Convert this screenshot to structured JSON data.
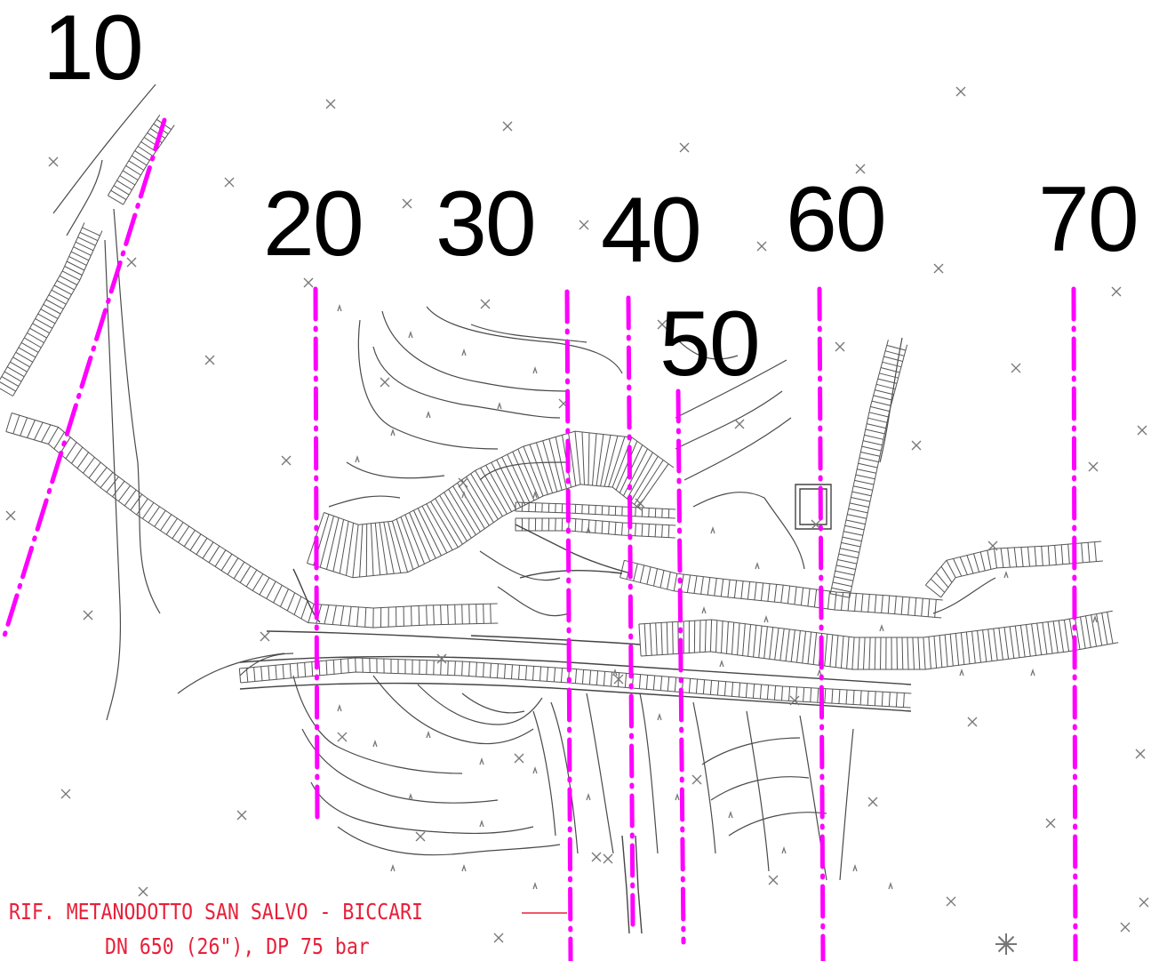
{
  "section_labels": {
    "s10": "10",
    "s20": "20",
    "s30": "30",
    "s40": "40",
    "s50": "50",
    "s60": "60",
    "s70": "70"
  },
  "reference_note": {
    "line1": "RIF. METANODOTTO SAN SALVO - BICCARI",
    "line2": "DN 650 (26\"), DP 75 bar"
  },
  "colors": {
    "section_line": "#ff00ff",
    "drawing_line": "#4a4a4a",
    "label_text": "#000000",
    "note_text": "#e8203a"
  }
}
